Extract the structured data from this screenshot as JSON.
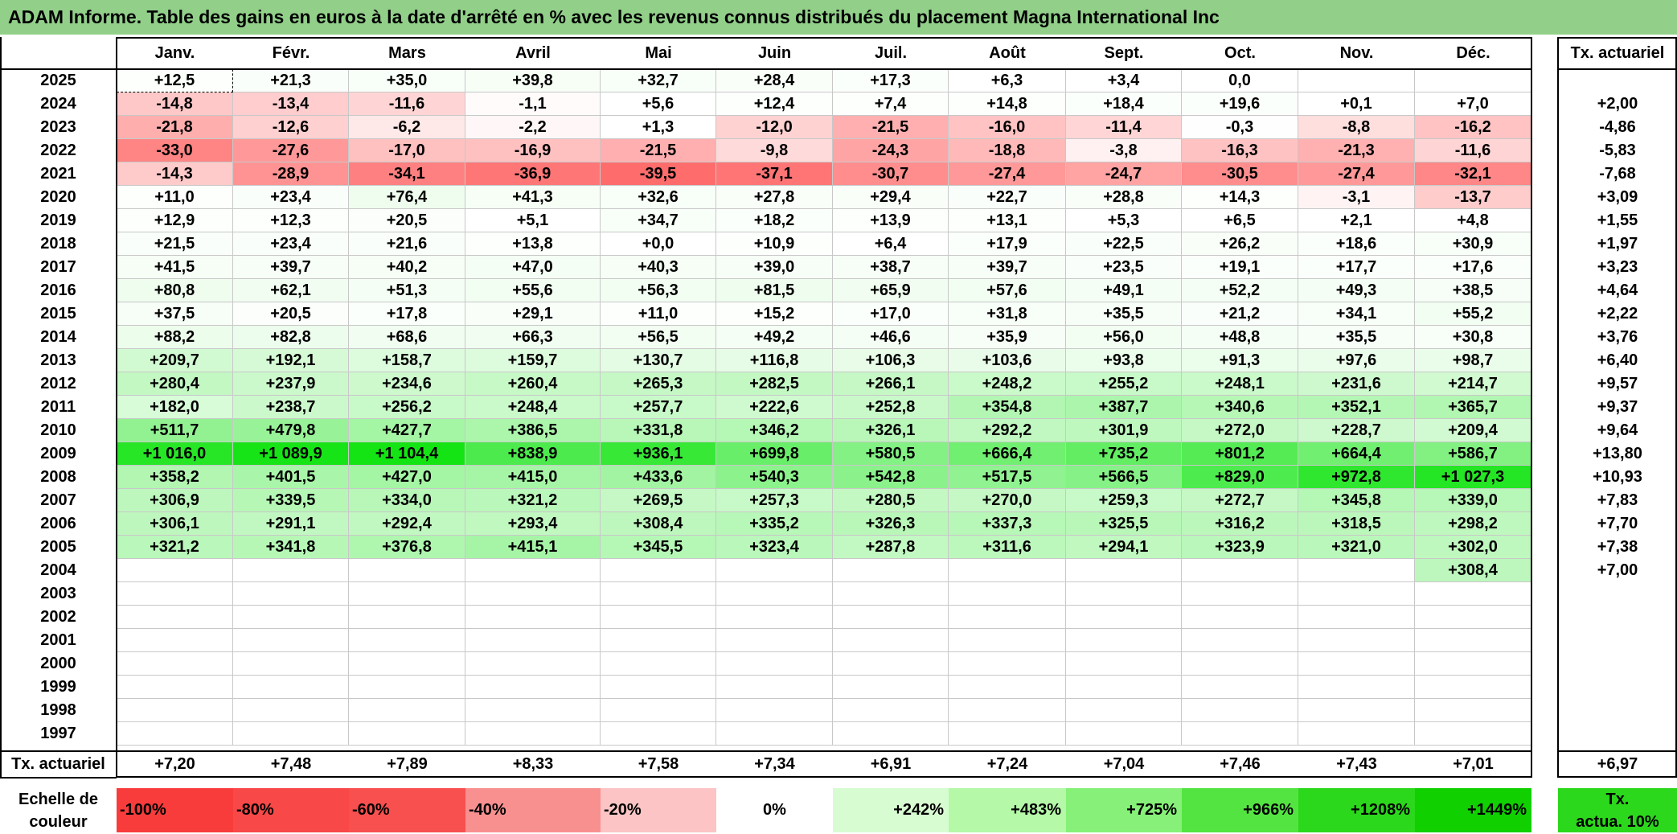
{
  "title": "ADAM Informe. Table des gains en euros à la date d'arrêté en % avec les revenus connus distribués du placement Magna International Inc",
  "months": [
    "Janv.",
    "Févr.",
    "Mars",
    "Avril",
    "Mai",
    "Juin",
    "Juil.",
    "Août",
    "Sept.",
    "Oct.",
    "Nov.",
    "Déc."
  ],
  "rate_header": "Tx. actuariel",
  "rows": [
    {
      "year": "2025",
      "values": [
        "+12,5",
        "+21,3",
        "+35,0",
        "+39,8",
        "+32,7",
        "+28,4",
        "+17,3",
        "+6,3",
        "+3,4",
        "0,0",
        "",
        ""
      ],
      "rate": ""
    },
    {
      "year": "2024",
      "values": [
        "-14,8",
        "-13,4",
        "-11,6",
        "-1,1",
        "+5,6",
        "+12,4",
        "+7,4",
        "+14,8",
        "+18,4",
        "+19,6",
        "+0,1",
        "+7,0"
      ],
      "rate": "+2,00"
    },
    {
      "year": "2023",
      "values": [
        "-21,8",
        "-12,6",
        "-6,2",
        "-2,2",
        "+1,3",
        "-12,0",
        "-21,5",
        "-16,0",
        "-11,4",
        "-0,3",
        "-8,8",
        "-16,2"
      ],
      "rate": "-4,86"
    },
    {
      "year": "2022",
      "values": [
        "-33,0",
        "-27,6",
        "-17,0",
        "-16,9",
        "-21,5",
        "-9,8",
        "-24,3",
        "-18,8",
        "-3,8",
        "-16,3",
        "-21,3",
        "-11,6"
      ],
      "rate": "-5,83"
    },
    {
      "year": "2021",
      "values": [
        "-14,3",
        "-28,9",
        "-34,1",
        "-36,9",
        "-39,5",
        "-37,1",
        "-30,7",
        "-27,4",
        "-24,7",
        "-30,5",
        "-27,4",
        "-32,1"
      ],
      "rate": "-7,68"
    },
    {
      "year": "2020",
      "values": [
        "+11,0",
        "+23,4",
        "+76,4",
        "+41,3",
        "+32,6",
        "+27,8",
        "+29,4",
        "+22,7",
        "+28,8",
        "+14,3",
        "-3,1",
        "-13,7"
      ],
      "rate": "+3,09"
    },
    {
      "year": "2019",
      "values": [
        "+12,9",
        "+12,3",
        "+20,5",
        "+5,1",
        "+34,7",
        "+18,2",
        "+13,9",
        "+13,1",
        "+5,3",
        "+6,5",
        "+2,1",
        "+4,8"
      ],
      "rate": "+1,55"
    },
    {
      "year": "2018",
      "values": [
        "+21,5",
        "+23,4",
        "+21,6",
        "+13,8",
        "+0,0",
        "+10,9",
        "+6,4",
        "+17,9",
        "+22,5",
        "+26,2",
        "+18,6",
        "+30,9"
      ],
      "rate": "+1,97"
    },
    {
      "year": "2017",
      "values": [
        "+41,5",
        "+39,7",
        "+40,2",
        "+47,0",
        "+40,3",
        "+39,0",
        "+38,7",
        "+39,7",
        "+23,5",
        "+19,1",
        "+17,7",
        "+17,6"
      ],
      "rate": "+3,23"
    },
    {
      "year": "2016",
      "values": [
        "+80,8",
        "+62,1",
        "+51,3",
        "+55,6",
        "+56,3",
        "+81,5",
        "+65,9",
        "+57,6",
        "+49,1",
        "+52,2",
        "+49,3",
        "+38,5"
      ],
      "rate": "+4,64"
    },
    {
      "year": "2015",
      "values": [
        "+37,5",
        "+20,5",
        "+17,8",
        "+29,1",
        "+11,0",
        "+15,2",
        "+17,0",
        "+31,8",
        "+35,5",
        "+21,2",
        "+34,1",
        "+55,2"
      ],
      "rate": "+2,22"
    },
    {
      "year": "2014",
      "values": [
        "+88,2",
        "+82,8",
        "+68,6",
        "+66,3",
        "+56,5",
        "+49,2",
        "+46,6",
        "+35,9",
        "+56,0",
        "+48,8",
        "+35,5",
        "+30,8"
      ],
      "rate": "+3,76"
    },
    {
      "year": "2013",
      "values": [
        "+209,7",
        "+192,1",
        "+158,7",
        "+159,7",
        "+130,7",
        "+116,8",
        "+106,3",
        "+103,6",
        "+93,8",
        "+91,3",
        "+97,6",
        "+98,7"
      ],
      "rate": "+6,40"
    },
    {
      "year": "2012",
      "values": [
        "+280,4",
        "+237,9",
        "+234,6",
        "+260,4",
        "+265,3",
        "+282,5",
        "+266,1",
        "+248,2",
        "+255,2",
        "+248,1",
        "+231,6",
        "+214,7"
      ],
      "rate": "+9,57"
    },
    {
      "year": "2011",
      "values": [
        "+182,0",
        "+238,7",
        "+256,2",
        "+248,4",
        "+257,7",
        "+222,6",
        "+252,8",
        "+354,8",
        "+387,7",
        "+340,6",
        "+352,1",
        "+365,7"
      ],
      "rate": "+9,37"
    },
    {
      "year": "2010",
      "values": [
        "+511,7",
        "+479,8",
        "+427,7",
        "+386,5",
        "+331,8",
        "+346,2",
        "+326,1",
        "+292,2",
        "+301,9",
        "+272,0",
        "+228,7",
        "+209,4"
      ],
      "rate": "+9,64"
    },
    {
      "year": "2009",
      "values": [
        "+1 016,0",
        "+1 089,9",
        "+1 104,4",
        "+838,9",
        "+936,1",
        "+699,8",
        "+580,5",
        "+666,4",
        "+735,2",
        "+801,2",
        "+664,4",
        "+586,7"
      ],
      "rate": "+13,80"
    },
    {
      "year": "2008",
      "values": [
        "+358,2",
        "+401,5",
        "+427,0",
        "+415,0",
        "+433,6",
        "+540,3",
        "+542,8",
        "+517,5",
        "+566,5",
        "+829,0",
        "+972,8",
        "+1 027,3"
      ],
      "rate": "+10,93"
    },
    {
      "year": "2007",
      "values": [
        "+306,9",
        "+339,5",
        "+334,0",
        "+321,2",
        "+269,5",
        "+257,3",
        "+280,5",
        "+270,0",
        "+259,3",
        "+272,7",
        "+345,8",
        "+339,0"
      ],
      "rate": "+7,83"
    },
    {
      "year": "2006",
      "values": [
        "+306,1",
        "+291,1",
        "+292,4",
        "+293,4",
        "+308,4",
        "+335,2",
        "+326,3",
        "+337,3",
        "+325,5",
        "+316,2",
        "+318,5",
        "+298,2"
      ],
      "rate": "+7,70"
    },
    {
      "year": "2005",
      "values": [
        "+321,2",
        "+341,8",
        "+376,8",
        "+415,1",
        "+345,5",
        "+323,4",
        "+287,8",
        "+311,6",
        "+294,1",
        "+323,9",
        "+321,0",
        "+302,0"
      ],
      "rate": "+7,38"
    },
    {
      "year": "2004",
      "values": [
        "",
        "",
        "",
        "",
        "",
        "",
        "",
        "",
        "",
        "",
        "",
        "+308,4"
      ],
      "rate": "+7,00"
    },
    {
      "year": "2003",
      "values": [
        "",
        "",
        "",
        "",
        "",
        "",
        "",
        "",
        "",
        "",
        "",
        ""
      ],
      "rate": ""
    },
    {
      "year": "2002",
      "values": [
        "",
        "",
        "",
        "",
        "",
        "",
        "",
        "",
        "",
        "",
        "",
        ""
      ],
      "rate": ""
    },
    {
      "year": "2001",
      "values": [
        "",
        "",
        "",
        "",
        "",
        "",
        "",
        "",
        "",
        "",
        "",
        ""
      ],
      "rate": ""
    },
    {
      "year": "2000",
      "values": [
        "",
        "",
        "",
        "",
        "",
        "",
        "",
        "",
        "",
        "",
        "",
        ""
      ],
      "rate": ""
    },
    {
      "year": "1999",
      "values": [
        "",
        "",
        "",
        "",
        "",
        "",
        "",
        "",
        "",
        "",
        "",
        ""
      ],
      "rate": ""
    },
    {
      "year": "1998",
      "values": [
        "",
        "",
        "",
        "",
        "",
        "",
        "",
        "",
        "",
        "",
        "",
        ""
      ],
      "rate": ""
    },
    {
      "year": "1997",
      "values": [
        "",
        "",
        "",
        "",
        "",
        "",
        "",
        "",
        "",
        "",
        "",
        ""
      ],
      "rate": ""
    }
  ],
  "footer": {
    "label": "Tx. actuariel",
    "values": [
      "+7,20",
      "+7,48",
      "+7,89",
      "+8,33",
      "+7,58",
      "+7,34",
      "+6,91",
      "+7,24",
      "+7,04",
      "+7,46",
      "+7,43",
      "+7,01"
    ],
    "total": "+6,97"
  },
  "legend": {
    "label_line1": "Echelle de",
    "label_line2": "couleur",
    "steps": [
      {
        "text": "-100%",
        "color": "#f83c3c"
      },
      {
        "text": "-80%",
        "color": "#f84848"
      },
      {
        "text": "-60%",
        "color": "#f84f4f"
      },
      {
        "text": "-40%",
        "color": "#f89090"
      },
      {
        "text": "-20%",
        "color": "#fcc4c4"
      },
      {
        "text": "0%",
        "color": "#ffffff"
      },
      {
        "text": "+242%",
        "color": "#d8fcd2"
      },
      {
        "text": "+483%",
        "color": "#b4f8a8"
      },
      {
        "text": "+725%",
        "color": "#86f078"
      },
      {
        "text": "+966%",
        "color": "#54e442"
      },
      {
        "text": "+1208%",
        "color": "#2cd81c"
      },
      {
        "text": "+1449%",
        "color": "#10d000"
      }
    ],
    "tx_line1": "Tx.",
    "tx_line2": "actua. 10%",
    "tx_color": "#2cd81c"
  }
}
